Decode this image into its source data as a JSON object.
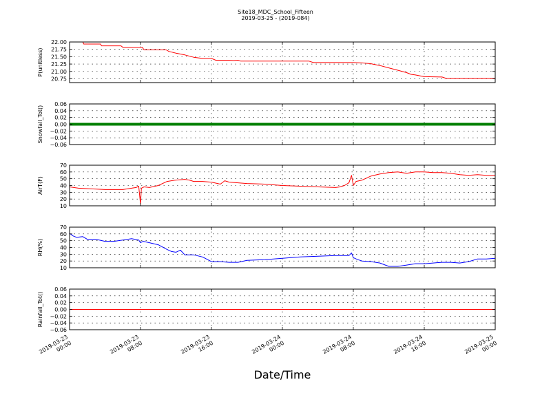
{
  "title": "Site18_MDC_School_Fifteen",
  "subtitle": "2019-03-25 - (2019-084)",
  "xlabel": "Date/Time",
  "chart_data": [
    {
      "type": "line",
      "ylabel": "P(unitless)",
      "ylim": [
        20.62,
        22.0
      ],
      "yticks": [
        "22.00",
        "21.75",
        "21.50",
        "21.25",
        "21.00",
        "20.75"
      ],
      "ytick_values": [
        22.0,
        21.75,
        21.5,
        21.25,
        21.0,
        20.75
      ],
      "xlim": [
        0,
        48
      ],
      "grid": true,
      "series": [
        {
          "color": "#ff0000",
          "x": [
            0,
            1.5,
            1.6,
            3.5,
            3.6,
            5.8,
            6.0,
            8.2,
            8.4,
            10.9,
            11.2,
            12.0,
            13.0,
            14.0,
            15.0,
            16.0,
            16.5,
            18.0,
            18.5,
            19.0,
            19.3,
            20.0,
            21.0,
            22.0,
            23.0,
            24.0,
            26.0,
            27.0,
            27.5,
            28.0,
            30.0,
            32.0,
            33.0,
            34.0,
            35.0,
            36.0,
            37.0,
            38.0,
            38.5,
            39.0,
            40.0,
            42.0,
            42.5,
            44.0,
            46.0,
            48.0
          ],
          "y": [
            22.0,
            22.0,
            21.93,
            21.93,
            21.87,
            21.87,
            21.82,
            21.82,
            21.73,
            21.73,
            21.68,
            21.62,
            21.56,
            21.48,
            21.44,
            21.44,
            21.38,
            21.38,
            21.37,
            21.38,
            21.35,
            21.35,
            21.35,
            21.35,
            21.35,
            21.35,
            21.35,
            21.35,
            21.3,
            21.3,
            21.3,
            21.3,
            21.29,
            21.26,
            21.2,
            21.12,
            21.04,
            20.96,
            20.9,
            20.88,
            20.82,
            20.81,
            20.76,
            20.76,
            20.76,
            20.76
          ]
        }
      ]
    },
    {
      "type": "line",
      "ylabel": "Snowfall_Tot()",
      "ylim": [
        -0.06,
        0.06
      ],
      "yticks": [
        "0.06",
        "0.04",
        "0.02",
        "0.00",
        "−0.02",
        "−0.04",
        "−0.06"
      ],
      "ytick_values": [
        0.06,
        0.04,
        0.02,
        0.0,
        -0.02,
        -0.04,
        -0.06
      ],
      "xlim": [
        0,
        48
      ],
      "grid": true,
      "series": [
        {
          "color": "#007f00",
          "marker": true,
          "x": [
            0,
            48
          ],
          "y": [
            0.0,
            0.0
          ]
        }
      ]
    },
    {
      "type": "line",
      "ylabel": "AirT(F)",
      "ylim": [
        10,
        70
      ],
      "yticks": [
        "70",
        "60",
        "50",
        "40",
        "30",
        "20",
        "10"
      ],
      "ytick_values": [
        70,
        60,
        50,
        40,
        30,
        20,
        10
      ],
      "xlim": [
        0,
        48
      ],
      "grid": true,
      "series": [
        {
          "color": "#ff0000",
          "x": [
            0,
            1.0,
            2.5,
            4.0,
            6.0,
            7.0,
            7.5,
            7.8,
            8.0,
            8.1,
            8.4,
            9.0,
            10.0,
            11.0,
            12.0,
            13.0,
            13.5,
            14.0,
            15.0,
            16.0,
            17.0,
            17.5,
            18.0,
            19.0,
            20.0,
            22.0,
            24.0,
            26.0,
            28.0,
            30.0,
            30.5,
            31.0,
            31.5,
            31.8,
            32.0,
            32.3,
            33.0,
            34.0,
            35.0,
            36.0,
            37.0,
            38.0,
            39.0,
            40.0,
            41.0,
            42.0,
            43.0,
            44.0,
            45.0,
            46.0,
            47.0,
            48.0
          ],
          "y": [
            38,
            36,
            35,
            34,
            34,
            36,
            37,
            39,
            12,
            36,
            38,
            37,
            40,
            46,
            48,
            49,
            48,
            46,
            46,
            45,
            42,
            47,
            45,
            44,
            43,
            42,
            40,
            39,
            38,
            37,
            38,
            40,
            44,
            55,
            40,
            46,
            48,
            54,
            57,
            59,
            60,
            58,
            60,
            60,
            59,
            59,
            58,
            56,
            55,
            56,
            55,
            55
          ]
        }
      ]
    },
    {
      "type": "line",
      "ylabel": "RH(%)",
      "ylim": [
        10,
        70
      ],
      "yticks": [
        "70",
        "60",
        "50",
        "40",
        "30",
        "20",
        "10"
      ],
      "ytick_values": [
        70,
        60,
        50,
        40,
        30,
        20,
        10
      ],
      "xlim": [
        0,
        48
      ],
      "grid": true,
      "series": [
        {
          "color": "#0000ff",
          "x": [
            0,
            0.4,
            0.8,
            1.5,
            2.0,
            3.0,
            4.0,
            5.0,
            6.0,
            7.0,
            7.8,
            8.0,
            8.3,
            9.0,
            10.0,
            11.0,
            11.5,
            12.0,
            12.5,
            13.0,
            14.0,
            15.0,
            16.0,
            17.0,
            18.0,
            19.0,
            20.0,
            22.0,
            24.0,
            26.0,
            28.0,
            30.0,
            31.5,
            31.8,
            32.0,
            32.5,
            33.0,
            34.0,
            35.0,
            36.0,
            37.0,
            38.0,
            39.0,
            40.0,
            41.0,
            42.0,
            43.0,
            44.0,
            45.0,
            46.0,
            47.0,
            48.0
          ],
          "y": [
            61,
            57,
            55,
            56,
            52,
            52,
            49,
            49,
            51,
            53,
            51,
            47,
            49,
            47,
            44,
            37,
            34,
            33,
            36,
            29,
            29,
            26,
            19,
            19,
            18,
            18,
            21,
            22,
            24,
            26,
            27,
            28,
            28,
            32,
            25,
            22,
            20,
            19,
            17,
            12,
            12,
            14,
            16,
            16,
            17,
            18,
            18,
            17,
            19,
            23,
            23,
            24
          ]
        }
      ]
    },
    {
      "type": "line",
      "ylabel": "Rainfall_Tot()",
      "ylim": [
        -0.06,
        0.06
      ],
      "yticks": [
        "0.06",
        "0.04",
        "0.02",
        "0.00",
        "−0.02",
        "−0.04",
        "−0.06"
      ],
      "ytick_values": [
        0.06,
        0.04,
        0.02,
        0.0,
        -0.02,
        -0.04,
        -0.06
      ],
      "xlim": [
        0,
        48
      ],
      "grid": true,
      "series": [
        {
          "color": "#ff0000",
          "x": [
            0,
            48
          ],
          "y": [
            0.0,
            0.0
          ]
        }
      ]
    }
  ],
  "xticks": [
    {
      "value": 0,
      "date": "2019-03-23",
      "time": "00:00"
    },
    {
      "value": 8,
      "date": "2019-03-23",
      "time": "08:00"
    },
    {
      "value": 16,
      "date": "2019-03-23",
      "time": "16:00"
    },
    {
      "value": 24,
      "date": "2019-03-24",
      "time": "00:00"
    },
    {
      "value": 32,
      "date": "2019-03-24",
      "time": "08:00"
    },
    {
      "value": 40,
      "date": "2019-03-24",
      "time": "16:00"
    },
    {
      "value": 48,
      "date": "2019-03-25",
      "time": "00:00"
    }
  ]
}
